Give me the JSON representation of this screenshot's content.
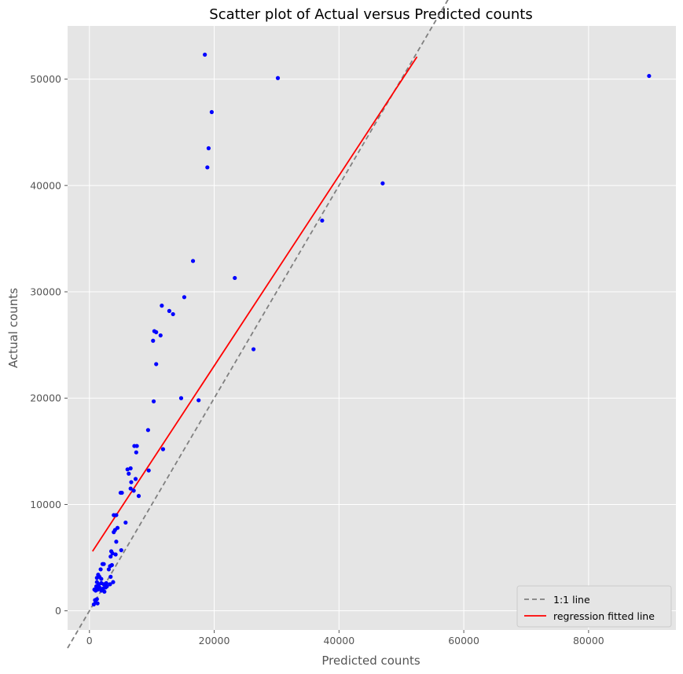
{
  "chart_data": {
    "type": "scatter",
    "title": "Scatter plot of Actual versus Predicted counts",
    "xlabel": "Predicted counts",
    "ylabel": "Actual counts",
    "xlim": [
      -3500,
      94000
    ],
    "ylim": [
      -1800,
      55000
    ],
    "xticks": [
      0,
      20000,
      40000,
      60000,
      80000
    ],
    "yticks": [
      0,
      10000,
      20000,
      30000,
      40000,
      50000
    ],
    "xtick_labels": [
      "0",
      "20000",
      "40000",
      "60000",
      "80000"
    ],
    "ytick_labels": [
      "0",
      "10000",
      "20000",
      "30000",
      "40000",
      "50000"
    ],
    "grid": true,
    "legend_position": "bottom-right",
    "colors": {
      "points": "#0000ff",
      "identity_line": "#808080",
      "regression_line": "#ff0000",
      "plot_background": "#e5e5e5",
      "grid": "#ffffff"
    },
    "series": [
      {
        "kind": "points",
        "points": [
          [
            18500,
            52300
          ],
          [
            30200,
            50100
          ],
          [
            89700,
            50300
          ],
          [
            19600,
            46900
          ],
          [
            19100,
            43500
          ],
          [
            18900,
            41700
          ],
          [
            47000,
            40200
          ],
          [
            37300,
            36700
          ],
          [
            16600,
            32900
          ],
          [
            23300,
            31300
          ],
          [
            15200,
            29500
          ],
          [
            11600,
            28700
          ],
          [
            12800,
            28200
          ],
          [
            13400,
            27900
          ],
          [
            10400,
            26300
          ],
          [
            10700,
            26200
          ],
          [
            11400,
            25900
          ],
          [
            10200,
            25400
          ],
          [
            26300,
            24600
          ],
          [
            10700,
            23200
          ],
          [
            14700,
            20000
          ],
          [
            17500,
            19800
          ],
          [
            10300,
            19700
          ],
          [
            9400,
            17000
          ],
          [
            7200,
            15500
          ],
          [
            7600,
            15500
          ],
          [
            11800,
            15200
          ],
          [
            7500,
            14900
          ],
          [
            9500,
            13200
          ],
          [
            6100,
            13300
          ],
          [
            6600,
            13400
          ],
          [
            6300,
            12900
          ],
          [
            7400,
            12400
          ],
          [
            6700,
            12100
          ],
          [
            6600,
            11500
          ],
          [
            7100,
            11300
          ],
          [
            5000,
            11100
          ],
          [
            5200,
            11100
          ],
          [
            7900,
            10800
          ],
          [
            3900,
            9000
          ],
          [
            4300,
            9000
          ],
          [
            5800,
            8300
          ],
          [
            4500,
            7800
          ],
          [
            3900,
            7400
          ],
          [
            4100,
            7600
          ],
          [
            4300,
            6500
          ],
          [
            5100,
            5700
          ],
          [
            3500,
            5600
          ],
          [
            3700,
            5400
          ],
          [
            4200,
            5300
          ],
          [
            3400,
            5100
          ],
          [
            3300,
            4200
          ],
          [
            3600,
            4300
          ],
          [
            3100,
            3900
          ],
          [
            2100,
            4400
          ],
          [
            2300,
            4400
          ],
          [
            1800,
            3900
          ],
          [
            1400,
            3400
          ],
          [
            1200,
            3100
          ],
          [
            1600,
            3200
          ],
          [
            1900,
            3000
          ],
          [
            3400,
            3200
          ],
          [
            2700,
            2600
          ],
          [
            3800,
            2700
          ],
          [
            2800,
            2300
          ],
          [
            1200,
            2700
          ],
          [
            1500,
            2500
          ],
          [
            1900,
            2600
          ],
          [
            2300,
            2500
          ],
          [
            1100,
            2300
          ],
          [
            1600,
            2200
          ],
          [
            2200,
            2100
          ],
          [
            2600,
            2200
          ],
          [
            3300,
            2500
          ],
          [
            800,
            2000
          ],
          [
            1300,
            2000
          ],
          [
            1900,
            1900
          ],
          [
            1000,
            1900
          ],
          [
            2400,
            1800
          ],
          [
            900,
            1000
          ],
          [
            1200,
            1100
          ],
          [
            1000,
            800
          ],
          [
            700,
            600
          ],
          [
            1300,
            700
          ]
        ]
      },
      {
        "name": "1:1 line",
        "kind": "dashed-line",
        "from": [
          -3500,
          -3500
        ],
        "to": [
          94000,
          94000
        ]
      },
      {
        "name": "regression fitted line",
        "kind": "line",
        "from": [
          500,
          5600
        ],
        "to": [
          52500,
          52100
        ]
      }
    ]
  }
}
